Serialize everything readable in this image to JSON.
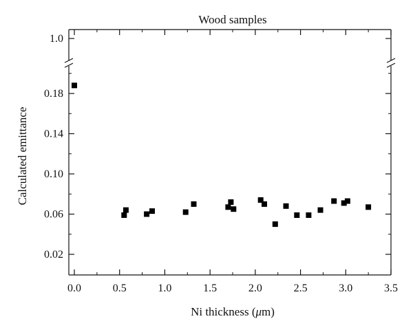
{
  "chart_data": {
    "type": "scatter",
    "title": "Wood samples",
    "xlabel_main": "Ni thickness (",
    "xlabel_unit_mu": "μ",
    "xlabel_unit_rest": "m)",
    "ylabel": "Calculated emittance",
    "xlim": [
      -0.05,
      3.5
    ],
    "ylim_lower": [
      0.0,
      0.2
    ],
    "ylim_upper_value": 1.0,
    "axis_break": true,
    "x_ticks": [
      "0.0",
      "0.5",
      "1.0",
      "1.5",
      "2.0",
      "2.5",
      "3.0",
      "3.5"
    ],
    "y_ticks": [
      "0.02",
      "0.06",
      "0.10",
      "0.14",
      "0.18"
    ],
    "y_tick_upper": "1.0",
    "marker": "filled-square",
    "marker_color": "#000000",
    "series": [
      {
        "points": [
          {
            "x": 0.0,
            "y": 0.188
          },
          {
            "x": 0.55,
            "y": 0.059
          },
          {
            "x": 0.57,
            "y": 0.064
          },
          {
            "x": 0.8,
            "y": 0.06
          },
          {
            "x": 0.86,
            "y": 0.063
          },
          {
            "x": 1.23,
            "y": 0.062
          },
          {
            "x": 1.32,
            "y": 0.07
          },
          {
            "x": 1.7,
            "y": 0.067
          },
          {
            "x": 1.73,
            "y": 0.072
          },
          {
            "x": 1.76,
            "y": 0.065
          },
          {
            "x": 2.06,
            "y": 0.074
          },
          {
            "x": 2.1,
            "y": 0.07
          },
          {
            "x": 2.22,
            "y": 0.05
          },
          {
            "x": 2.34,
            "y": 0.068
          },
          {
            "x": 2.46,
            "y": 0.059
          },
          {
            "x": 2.59,
            "y": 0.059
          },
          {
            "x": 2.72,
            "y": 0.064
          },
          {
            "x": 2.87,
            "y": 0.073
          },
          {
            "x": 2.98,
            "y": 0.071
          },
          {
            "x": 3.02,
            "y": 0.073
          },
          {
            "x": 3.25,
            "y": 0.067
          }
        ]
      }
    ]
  }
}
